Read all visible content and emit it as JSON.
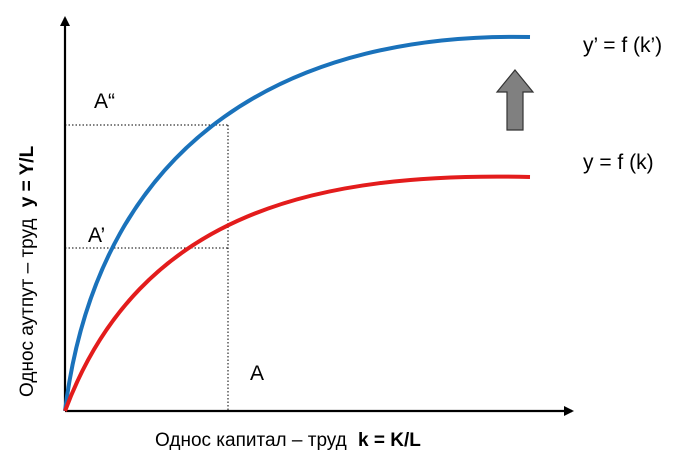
{
  "diagram": {
    "labels": {
      "curve_upper": "y’ = f (k’)",
      "curve_lower": "y = f (k)",
      "point_A2": "A“",
      "point_A1": "A’",
      "point_A": "A"
    },
    "x_axis": {
      "text": "Однос капитал – труд ",
      "formula": "k = K/L"
    },
    "y_axis": {
      "text": "Однос аутпут – труд ",
      "formula": "y = Y/L"
    },
    "colors": {
      "curve_upper": "#1a72bb",
      "curve_lower": "#e31c1c",
      "arrow": "#808080",
      "axis": "#000000"
    }
  }
}
